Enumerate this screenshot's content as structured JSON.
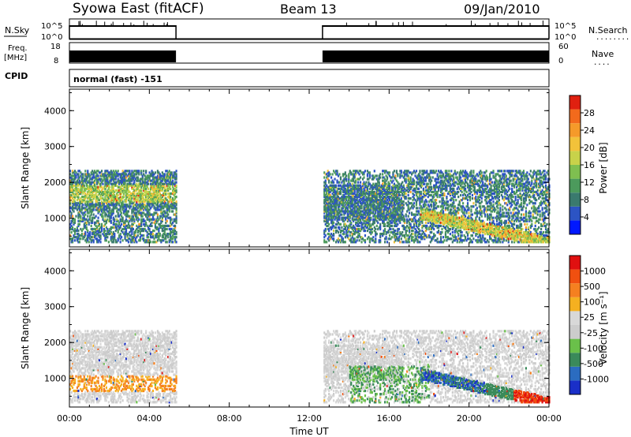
{
  "header": {
    "station": "Syowa East (fitACF)",
    "beam": "Beam 13",
    "date": "09/Jan/2010"
  },
  "strips": {
    "nsky_label": "N.Sky",
    "nsearch_label": "N.Search",
    "noise_ticks": [
      "10^5",
      "10^0"
    ],
    "noise_ticks_right": [
      "10^5",
      "10^0"
    ],
    "freq_label_1": "Freq.",
    "freq_label_2": "[MHz]",
    "freq_ticks": [
      "18",
      "8"
    ],
    "nave_ticks": [
      "60",
      "0"
    ],
    "nave_label": "Nave",
    "dots": "........",
    "dots_short": "....",
    "cpid_label": "CPID",
    "cpid_value": "normal (fast) -151"
  },
  "chart_data": [
    {
      "type": "heatmap",
      "title": "",
      "ylabel": "Slant Range [km]",
      "yticks": [
        "1000",
        "2000",
        "3000",
        "4000"
      ],
      "colorbar_label": "Power [dB]",
      "colorbar_ticks": [
        "4",
        "8",
        "12",
        "16",
        "20",
        "24",
        "28"
      ],
      "colorbar_colors": [
        "#0018ff",
        "#2c54c4",
        "#3a7a6e",
        "#4c9a5c",
        "#7fbf50",
        "#c8d24a",
        "#f2c23a",
        "#f59a2a",
        "#f26a1c",
        "#e02010"
      ],
      "ylim": [
        200,
        4600
      ],
      "coverage": [
        {
          "start": "00:00",
          "end": "05:20",
          "range_km": [
            300,
            2300
          ]
        },
        {
          "start": "12:40",
          "end": "24:00",
          "range_km": [
            300,
            2300
          ]
        }
      ]
    },
    {
      "type": "heatmap",
      "title": "",
      "ylabel": "Slant Range [km]",
      "yticks": [
        "1000",
        "2000",
        "3000",
        "4000"
      ],
      "colorbar_label": "Velocity [m s⁻¹]",
      "colorbar_ticks": [
        "1000",
        "500",
        "100",
        "25",
        "-25",
        "-100",
        "-500",
        "-1000"
      ],
      "colorbar_colors": [
        "#1a2fc8",
        "#2b6cc0",
        "#3a8a5a",
        "#6ac04a",
        "#cccccc",
        "#d8d8d8",
        "#f5b020",
        "#f58020",
        "#f05010",
        "#e01010"
      ],
      "ylim": [
        200,
        4600
      ],
      "coverage": [
        {
          "start": "00:00",
          "end": "05:20",
          "range_km": [
            300,
            2300
          ]
        },
        {
          "start": "12:40",
          "end": "24:00",
          "range_km": [
            300,
            2300
          ]
        }
      ]
    }
  ],
  "xaxis": {
    "ticks": [
      "00:00",
      "04:00",
      "08:00",
      "12:00",
      "16:00",
      "20:00",
      "00:00"
    ],
    "label": "Time UT"
  }
}
